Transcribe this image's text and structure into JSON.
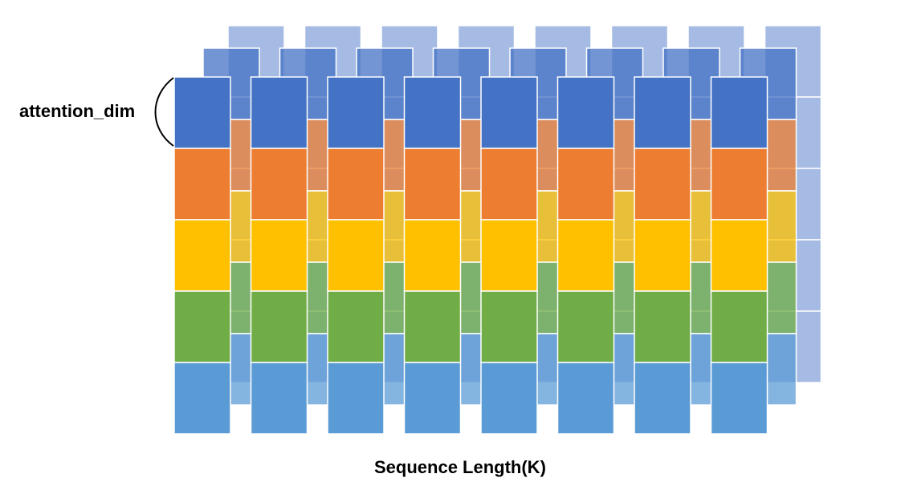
{
  "labels": {
    "dim": "attention_dim",
    "axis": "Sequence Length(K)"
  },
  "diagram": {
    "columns": 8,
    "segments": [
      {
        "name": "blue-dark",
        "color": "#4472C4"
      },
      {
        "name": "orange",
        "color": "#ED7D31"
      },
      {
        "name": "yellow",
        "color": "#FFC000"
      },
      {
        "name": "green",
        "color": "#70AD47"
      },
      {
        "name": "blue-light",
        "color": "#5B9BD5"
      }
    ],
    "back_color": "#8FAADC",
    "back_opacity": 0.8,
    "mid_opacity": 0.75
  }
}
